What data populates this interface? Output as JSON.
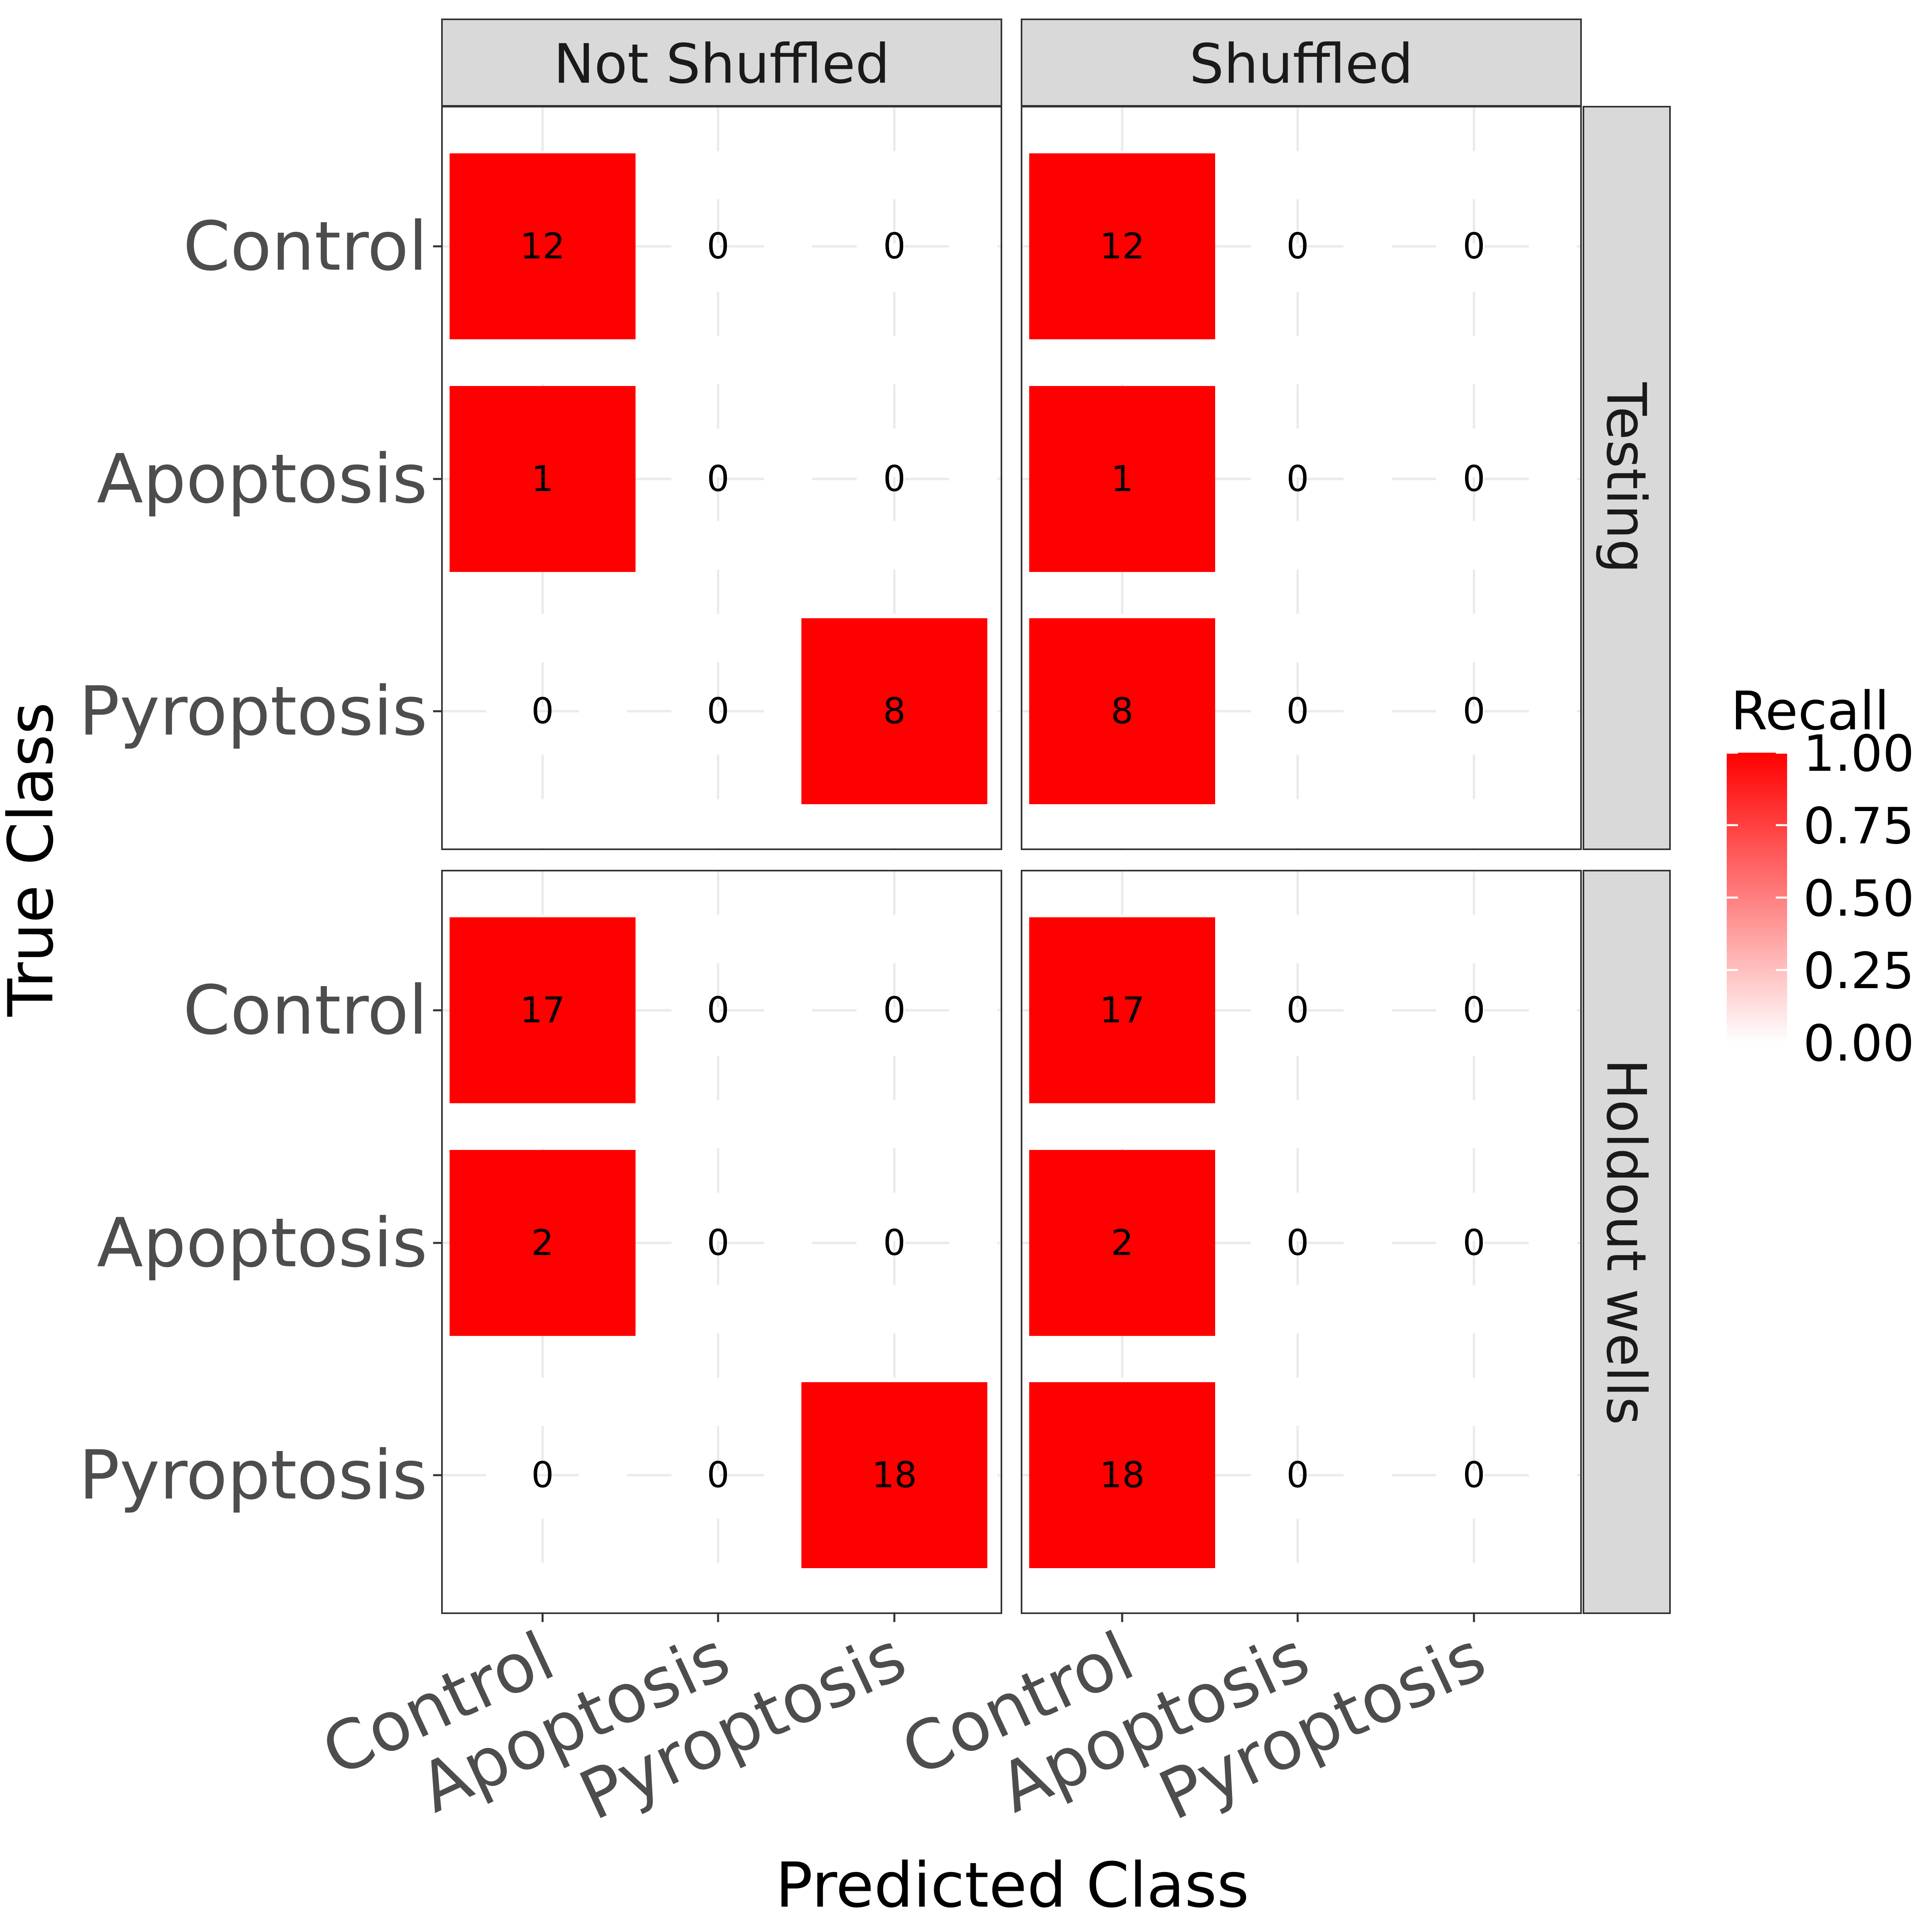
{
  "chart_data": {
    "type": "heatmap",
    "title": "",
    "xlabel": "Predicted Class",
    "ylabel": "True Class",
    "x_categories": [
      "Control",
      "Apoptosis",
      "Pyroptosis"
    ],
    "y_categories": [
      "Control",
      "Apoptosis",
      "Pyroptosis"
    ],
    "column_facets": [
      "Not Shuffled",
      "Shuffled"
    ],
    "row_facets": [
      "Testing",
      "Holdout wells"
    ],
    "legend": {
      "title": "Recall",
      "position": "right",
      "range": [
        0,
        1
      ],
      "ticks": [
        "1.00",
        "0.75",
        "0.50",
        "0.25",
        "0.00"
      ],
      "low_color": "#ffffff",
      "high_color": "#ff0000"
    },
    "grid": true,
    "panels": [
      {
        "row_facet": "Testing",
        "column_facet": "Not Shuffled",
        "counts": [
          [
            12,
            0,
            0
          ],
          [
            1,
            0,
            0
          ],
          [
            0,
            0,
            8
          ]
        ],
        "recall": [
          [
            1,
            0,
            0
          ],
          [
            1,
            0,
            0
          ],
          [
            0,
            0,
            1
          ]
        ]
      },
      {
        "row_facet": "Testing",
        "column_facet": "Shuffled",
        "counts": [
          [
            12,
            0,
            0
          ],
          [
            1,
            0,
            0
          ],
          [
            8,
            0,
            0
          ]
        ],
        "recall": [
          [
            1,
            0,
            0
          ],
          [
            1,
            0,
            0
          ],
          [
            1,
            0,
            0
          ]
        ]
      },
      {
        "row_facet": "Holdout wells",
        "column_facet": "Not Shuffled",
        "counts": [
          [
            17,
            0,
            0
          ],
          [
            2,
            0,
            0
          ],
          [
            0,
            0,
            18
          ]
        ],
        "recall": [
          [
            1,
            0,
            0
          ],
          [
            1,
            0,
            0
          ],
          [
            0,
            0,
            1
          ]
        ]
      },
      {
        "row_facet": "Holdout wells",
        "column_facet": "Shuffled",
        "counts": [
          [
            17,
            0,
            0
          ],
          [
            2,
            0,
            0
          ],
          [
            18,
            0,
            0
          ]
        ],
        "recall": [
          [
            1,
            0,
            0
          ],
          [
            1,
            0,
            0
          ],
          [
            1,
            0,
            0
          ]
        ]
      }
    ]
  }
}
